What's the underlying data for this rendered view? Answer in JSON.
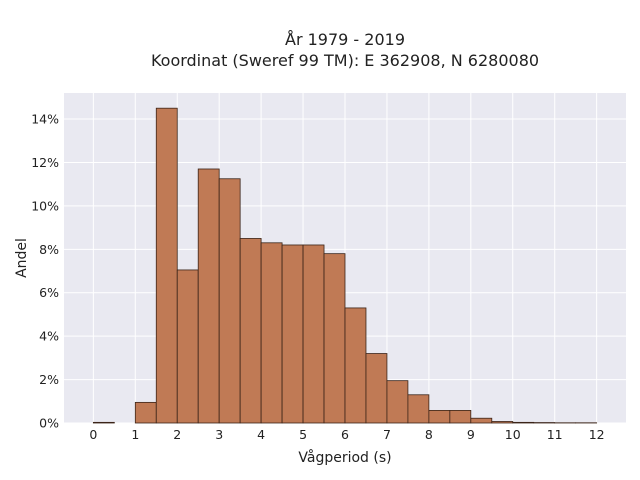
{
  "chart_data": {
    "type": "bar",
    "title_line1": "År 1979 - 2019",
    "title_line2": "Koordinat (Sweref 99 TM): E 362908, N 6280080",
    "xlabel": "Vågperiod (s)",
    "ylabel": "Andel",
    "x_ticks": [
      0,
      1,
      2,
      3,
      4,
      5,
      6,
      7,
      8,
      9,
      10,
      11,
      12
    ],
    "y_ticks": [
      0,
      2,
      4,
      6,
      8,
      10,
      12,
      14
    ],
    "y_tick_suffix": "%",
    "xlim": [
      -0.7,
      12.7
    ],
    "ylim": [
      0,
      15.2
    ],
    "bin_width": 0.5,
    "bins": [
      {
        "x0": 0.0,
        "value": 0.03
      },
      {
        "x0": 0.5,
        "value": 0.0
      },
      {
        "x0": 1.0,
        "value": 0.95
      },
      {
        "x0": 1.5,
        "value": 14.5
      },
      {
        "x0": 2.0,
        "value": 7.05
      },
      {
        "x0": 2.5,
        "value": 11.7
      },
      {
        "x0": 3.0,
        "value": 11.25
      },
      {
        "x0": 3.5,
        "value": 8.5
      },
      {
        "x0": 4.0,
        "value": 8.3
      },
      {
        "x0": 4.5,
        "value": 8.2
      },
      {
        "x0": 5.0,
        "value": 8.2
      },
      {
        "x0": 5.5,
        "value": 7.8
      },
      {
        "x0": 6.0,
        "value": 5.3
      },
      {
        "x0": 6.5,
        "value": 3.2
      },
      {
        "x0": 7.0,
        "value": 1.95
      },
      {
        "x0": 7.5,
        "value": 1.3
      },
      {
        "x0": 8.0,
        "value": 0.58
      },
      {
        "x0": 8.5,
        "value": 0.58
      },
      {
        "x0": 9.0,
        "value": 0.22
      },
      {
        "x0": 9.5,
        "value": 0.07
      },
      {
        "x0": 10.0,
        "value": 0.03
      },
      {
        "x0": 10.5,
        "value": 0.02
      },
      {
        "x0": 11.0,
        "value": 0.01
      },
      {
        "x0": 11.5,
        "value": 0.01
      }
    ],
    "grid": true,
    "colors": {
      "bar_fill": "#c07a55",
      "bar_stroke": "#3b2418",
      "plot_bg": "#e9e9f1",
      "grid": "#ffffff"
    }
  }
}
